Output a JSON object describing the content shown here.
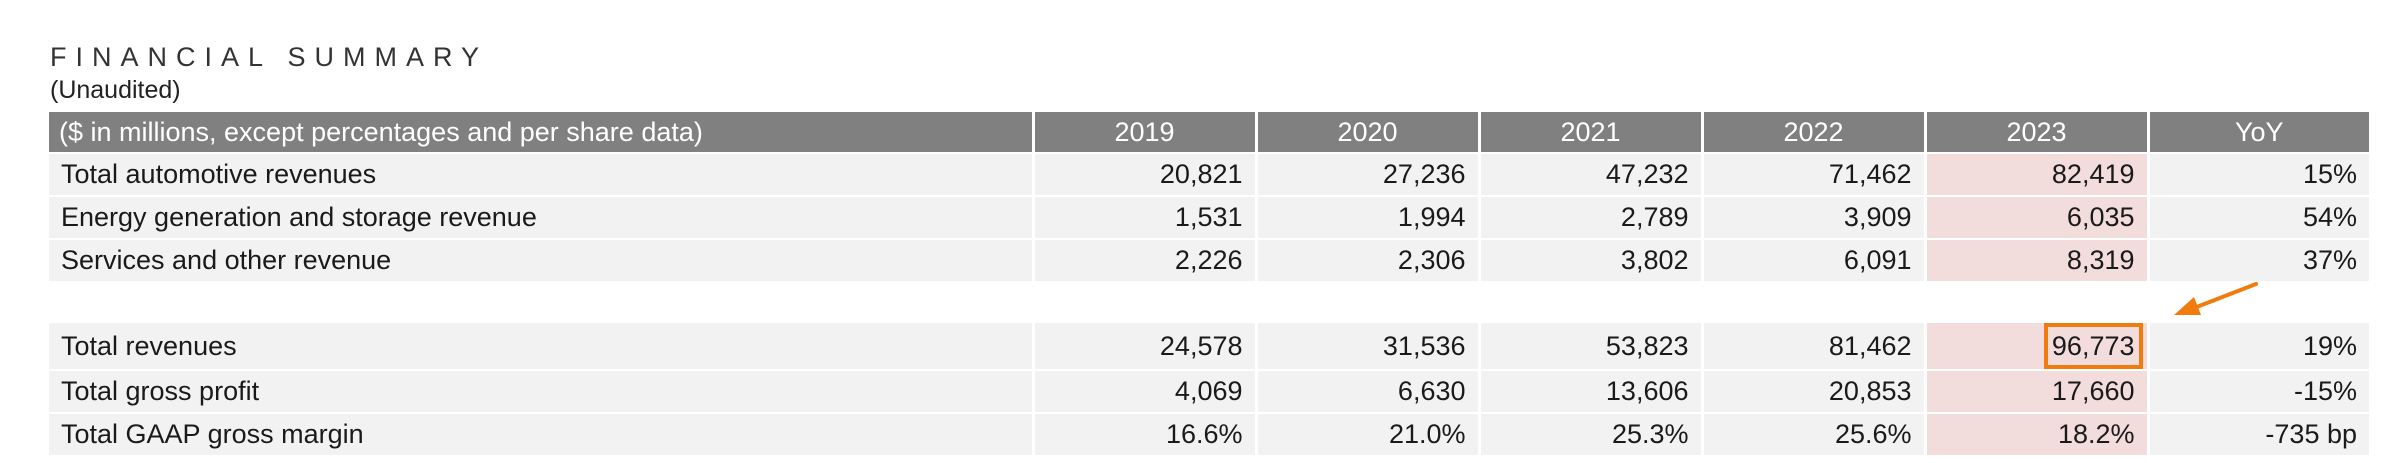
{
  "title": "FINANCIAL SUMMARY",
  "subtitle": "(Unaudited)",
  "table": {
    "header": {
      "label": "($ in millions, except percentages and per share data)",
      "years": [
        "2019",
        "2020",
        "2021",
        "2022",
        "2023"
      ],
      "yoy": "YoY"
    },
    "rows": [
      {
        "label": "Total automotive revenues",
        "values": [
          "20,821",
          "27,236",
          "47,232",
          "71,462",
          "82,419"
        ],
        "yoy": "15%"
      },
      {
        "label": "Energy generation and storage revenue",
        "values": [
          "1,531",
          "1,994",
          "2,789",
          "3,909",
          "6,035"
        ],
        "yoy": "54%"
      },
      {
        "label": "Services and other revenue",
        "values": [
          "2,226",
          "2,306",
          "3,802",
          "6,091",
          "8,319"
        ],
        "yoy": "37%"
      },
      {
        "label": "Total revenues",
        "values": [
          "24,578",
          "31,536",
          "53,823",
          "81,462",
          "96,773"
        ],
        "yoy": "19%"
      },
      {
        "label": "Total gross profit",
        "values": [
          "4,069",
          "6,630",
          "13,606",
          "20,853",
          "17,660"
        ],
        "yoy": "-15%"
      },
      {
        "label": "Total GAAP gross margin",
        "values": [
          "16.6%",
          "21.0%",
          "25.3%",
          "25.6%",
          "18.2%"
        ],
        "yoy": "-735 bp"
      }
    ]
  },
  "colors": {
    "header_bg": "#808080",
    "row_bg": "#f2f2f2",
    "highlight_column_bg": "#f3dcdc",
    "annotation": "#f07c0f"
  },
  "annotation": {
    "icon": "arrow-pointer-icon",
    "highlighted_cell": "Total revenues 2023"
  }
}
